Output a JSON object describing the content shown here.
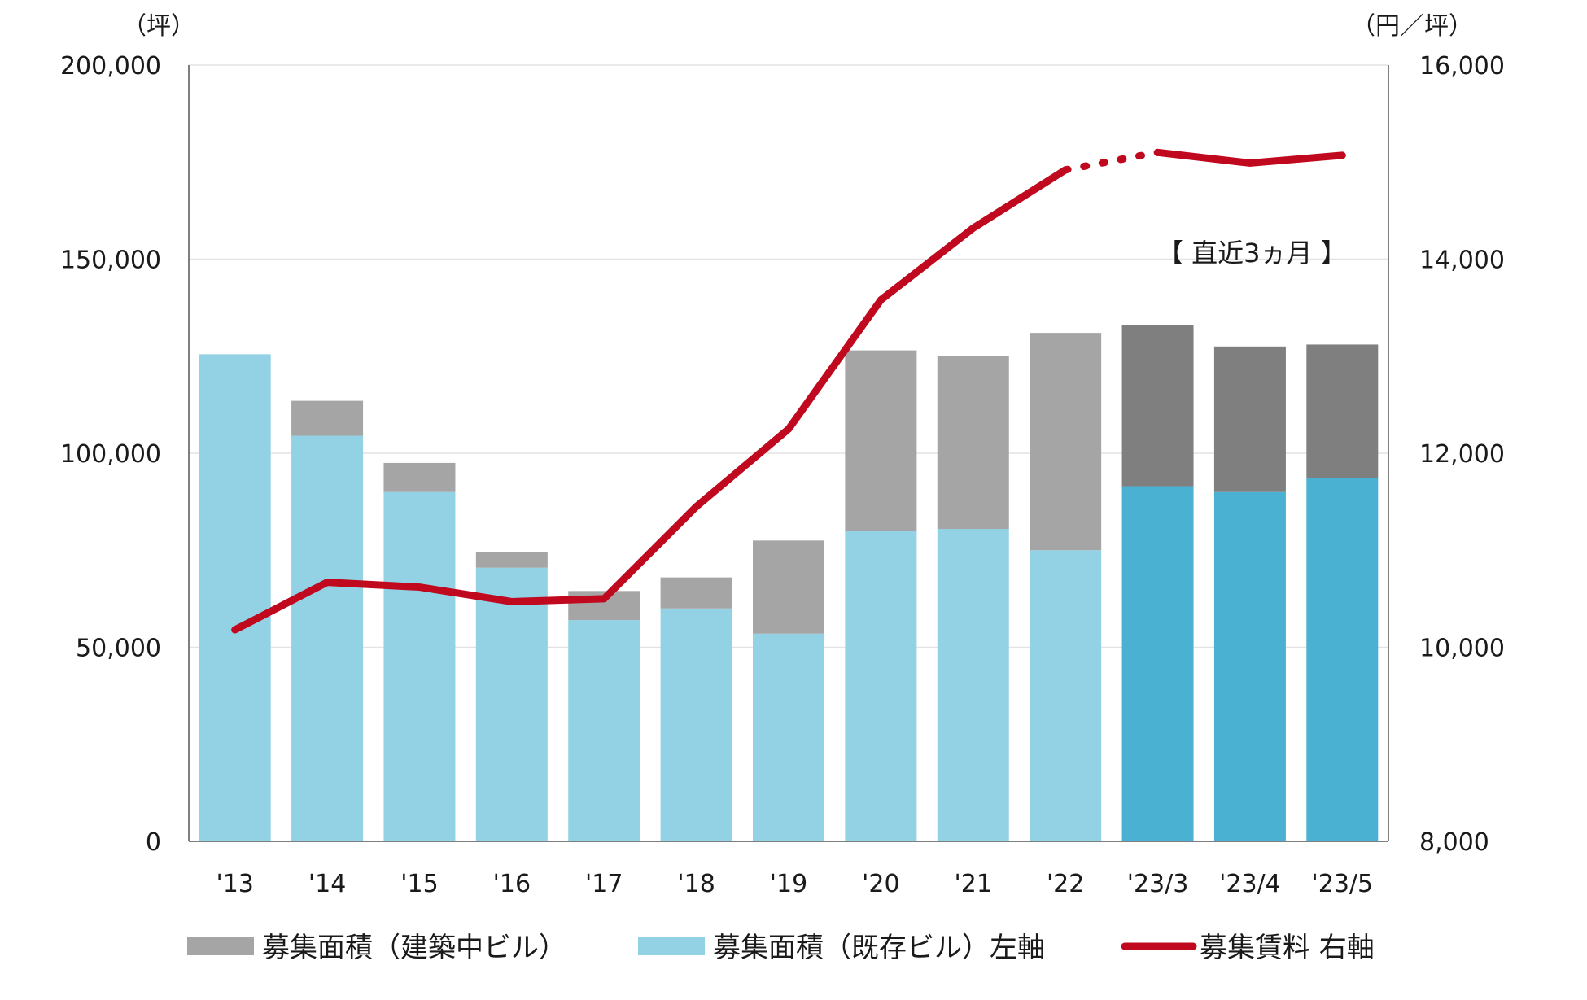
{
  "chart_data": {
    "type": "bar",
    "categories": [
      "'13",
      "'14",
      "'15",
      "'16",
      "'17",
      "'18",
      "'19",
      "'20",
      "'21",
      "'22",
      "'23/3",
      "'23/4",
      "'23/5"
    ],
    "series": [
      {
        "name": "募集面積（既存ビル）左軸",
        "role": "bar-bottom",
        "values": [
          125500,
          104500,
          90000,
          70500,
          57000,
          60000,
          53500,
          80000,
          80500,
          75000,
          91500,
          90000,
          93500
        ],
        "color": "#93d1e4",
        "recent_color": "#4ab1d3"
      },
      {
        "name": "募集面積（建築中ビル）",
        "role": "bar-top",
        "values": [
          0,
          9000,
          7500,
          4000,
          7500,
          8000,
          24000,
          46500,
          44500,
          56000,
          41500,
          37500,
          34500
        ],
        "color": "#a5a5a5",
        "recent_color": "#7f7f7f"
      },
      {
        "name": "募集賃料 右軸",
        "role": "line",
        "axis": "right",
        "values": [
          10180,
          10670,
          10620,
          10470,
          10500,
          11450,
          12250,
          13580,
          14320,
          14920,
          15100,
          14990,
          15070
        ],
        "color": "#c0081e"
      }
    ],
    "recent_start_index": 10,
    "left_axis": {
      "unit": "（坪）",
      "ylim": [
        0,
        200000
      ],
      "ticks": [
        "0",
        "50,000",
        "100,000",
        "150,000",
        "200,000"
      ]
    },
    "right_axis": {
      "unit": "（円／坪）",
      "ylim": [
        8000,
        16000
      ],
      "ticks": [
        "8,000",
        "10,000",
        "12,000",
        "14,000",
        "16,000"
      ]
    },
    "annotation": "【 直近3ヵ月 】",
    "grid": true,
    "legend_position": "bottom",
    "legend": {
      "construction": "募集面積（建築中ビル）",
      "existing": "募集面積（既存ビル）左軸",
      "rent": "募集賃料 右軸"
    }
  }
}
